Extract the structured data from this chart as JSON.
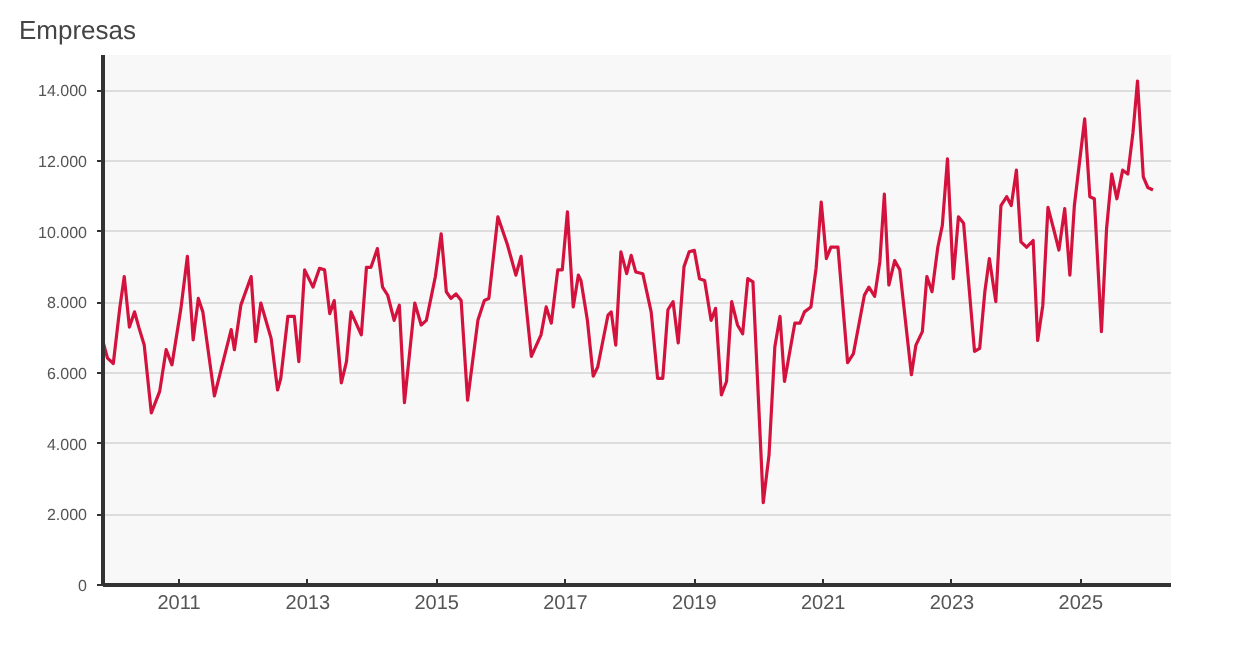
{
  "chart_data": {
    "type": "line",
    "title": "Empresas",
    "x": [
      2009.82,
      2009.89,
      2009.98,
      2010.08,
      2010.15,
      2010.23,
      2010.31,
      2010.38,
      2010.46,
      2010.57,
      2010.7,
      2010.8,
      2010.89,
      2011.03,
      2011.13,
      2011.22,
      2011.3,
      2011.37,
      2011.55,
      2011.81,
      2011.86,
      2011.96,
      2012.12,
      2012.19,
      2012.27,
      2012.43,
      2012.53,
      2012.58,
      2012.69,
      2012.79,
      2012.86,
      2012.95,
      2013.08,
      2013.18,
      2013.26,
      2013.34,
      2013.41,
      2013.52,
      2013.6,
      2013.67,
      2013.83,
      2013.91,
      2013.98,
      2014.08,
      2014.16,
      2014.24,
      2014.34,
      2014.42,
      2014.5,
      2014.66,
      2014.76,
      2014.84,
      2014.98,
      2015.07,
      2015.15,
      2015.22,
      2015.3,
      2015.38,
      2015.48,
      2015.64,
      2015.74,
      2015.81,
      2015.95,
      2016.1,
      2016.23,
      2016.31,
      2016.47,
      2016.62,
      2016.7,
      2016.78,
      2016.88,
      2016.95,
      2017.03,
      2017.12,
      2017.2,
      2017.24,
      2017.34,
      2017.43,
      2017.5,
      2017.66,
      2017.71,
      2017.78,
      2017.86,
      2017.95,
      2018.02,
      2018.09,
      2018.2,
      2018.33,
      2018.43,
      2018.51,
      2018.59,
      2018.67,
      2018.75,
      2018.84,
      2018.92,
      2019.0,
      2019.08,
      2019.16,
      2019.26,
      2019.33,
      2019.42,
      2019.5,
      2019.58,
      2019.67,
      2019.75,
      2019.83,
      2019.91,
      2020.07,
      2020.16,
      2020.25,
      2020.33,
      2020.4,
      2020.56,
      2020.64,
      2020.71,
      2020.81,
      2020.89,
      2020.97,
      2021.05,
      2021.12,
      2021.23,
      2021.38,
      2021.47,
      2021.64,
      2021.71,
      2021.8,
      2021.88,
      2021.95,
      2022.02,
      2022.11,
      2022.19,
      2022.37,
      2022.44,
      2022.54,
      2022.61,
      2022.69,
      2022.78,
      2022.85,
      2022.93,
      2023.02,
      2023.1,
      2023.18,
      2023.35,
      2023.43,
      2023.51,
      2023.58,
      2023.68,
      2023.76,
      2023.85,
      2023.92,
      2024.0,
      2024.07,
      2024.16,
      2024.26,
      2024.33,
      2024.41,
      2024.49,
      2024.59,
      2024.66,
      2024.75,
      2024.83,
      2024.9,
      2024.98,
      2025.06,
      2025.14,
      2025.21,
      2025.32,
      2025.4,
      2025.48,
      2025.56,
      2025.65,
      2025.73,
      2025.81,
      2025.88,
      2025.97,
      2026.04,
      2026.12
    ],
    "series": [
      {
        "color": "#d4123e",
        "values": [
          6890,
          6420,
          6270,
          7830,
          8730,
          7300,
          7730,
          7270,
          6790,
          4870,
          5480,
          6660,
          6230,
          7830,
          9300,
          6940,
          8110,
          7730,
          5350,
          7230,
          6660,
          7920,
          8730,
          6890,
          7980,
          6980,
          5520,
          5850,
          7600,
          7600,
          6320,
          8920,
          8430,
          8960,
          8920,
          7680,
          8050,
          5720,
          6320,
          7730,
          7080,
          8990,
          8990,
          9520,
          8430,
          8200,
          7490,
          7920,
          5160,
          7980,
          7360,
          7490,
          8730,
          9940,
          8300,
          8110,
          8240,
          8050,
          5230,
          7490,
          8050,
          8110,
          10420,
          9620,
          8770,
          9300,
          6470,
          7080,
          7870,
          7410,
          8920,
          8920,
          10560,
          7870,
          8770,
          8620,
          7490,
          5910,
          6170,
          7640,
          7730,
          6790,
          9430,
          8810,
          9330,
          8860,
          8810,
          7730,
          5850,
          5850,
          7790,
          8020,
          6850,
          9010,
          9430,
          9470,
          8670,
          8620,
          7490,
          7830,
          5380,
          5760,
          8020,
          7360,
          7110,
          8670,
          8580,
          2330,
          3690,
          6740,
          7600,
          5760,
          7410,
          7410,
          7730,
          7870,
          8960,
          10840,
          9240,
          9560,
          9560,
          6290,
          6550,
          8200,
          8430,
          8170,
          9150,
          11060,
          8490,
          9180,
          8920,
          5950,
          6790,
          7170,
          8730,
          8300,
          9560,
          10180,
          12060,
          8670,
          10420,
          10240,
          6610,
          6700,
          8300,
          9240,
          8020,
          10740,
          10990,
          10740,
          11740,
          9710,
          9560,
          9750,
          6920,
          7920,
          10690,
          9990,
          9480,
          10650,
          8770,
          10740,
          11970,
          13190,
          10990,
          10930,
          7170,
          10090,
          11630,
          10930,
          11740,
          11630,
          12810,
          14260,
          11550,
          11250,
          11180
        ]
      }
    ],
    "xlim": [
      2009.82,
      2026.4
    ],
    "ylim": [
      0,
      15000
    ],
    "xticks": [
      2011,
      2013,
      2015,
      2017,
      2019,
      2021,
      2023,
      2025
    ],
    "yticks": [
      0,
      {
        "value": 2000,
        "label": "2.000"
      },
      {
        "value": 4000,
        "label": "4.000"
      },
      {
        "value": 6000,
        "label": "6.000"
      },
      {
        "value": 8000,
        "label": "8.000"
      },
      {
        "value": 10000,
        "label": "10.000"
      },
      {
        "value": 12000,
        "label": "12.000"
      },
      {
        "value": 14000,
        "label": "14.000"
      }
    ],
    "grid": "y",
    "marker": "none",
    "line_style": "solid"
  }
}
